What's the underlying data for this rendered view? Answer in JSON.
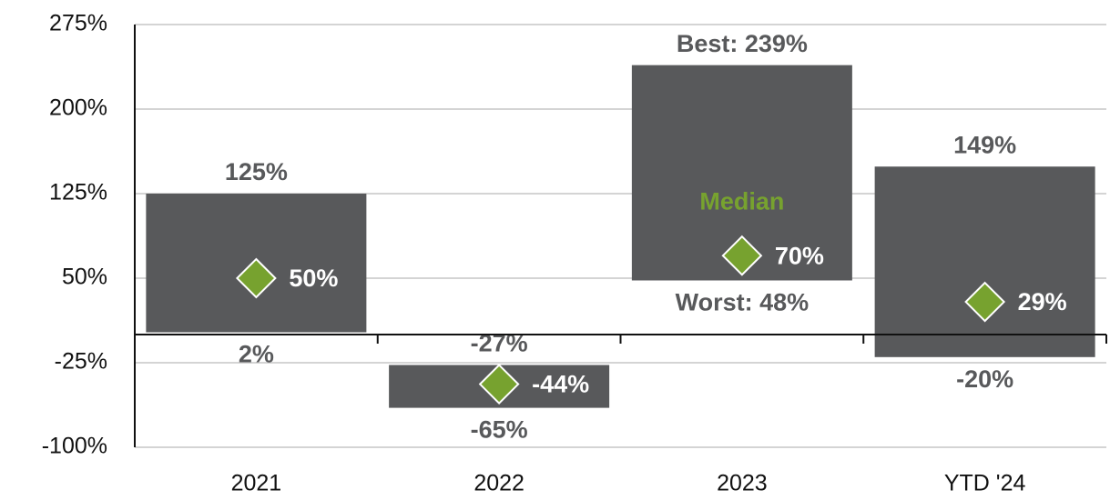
{
  "chart_data": {
    "type": "range-bar",
    "categories": [
      "2021",
      "2022",
      "2023",
      "YTD '24"
    ],
    "high": {
      "values": [
        125,
        -27,
        239,
        149
      ],
      "value_labels": [
        "125%",
        "-27%",
        "Best: 239%",
        "149%"
      ]
    },
    "low": {
      "values": [
        2,
        -65,
        48,
        -20
      ],
      "value_labels": [
        "2%",
        "-65%",
        "Worst: 48%",
        "-20%"
      ]
    },
    "median": {
      "name": "Median",
      "values": [
        50,
        -44,
        70,
        29
      ],
      "value_labels": [
        "50%",
        "-44%",
        "70%",
        "29%"
      ],
      "color": "#77a22f"
    },
    "color": "#58595b",
    "ylim": [
      -100,
      275
    ],
    "yticks": [
      {
        "value": -100,
        "label": "-100%"
      },
      {
        "value": -25,
        "label": "-25%"
      },
      {
        "value": 50,
        "label": "50%"
      },
      {
        "value": 125,
        "label": "125%"
      },
      {
        "value": 200,
        "label": "200%"
      },
      {
        "value": 275,
        "label": "275%"
      }
    ],
    "grid": true
  }
}
